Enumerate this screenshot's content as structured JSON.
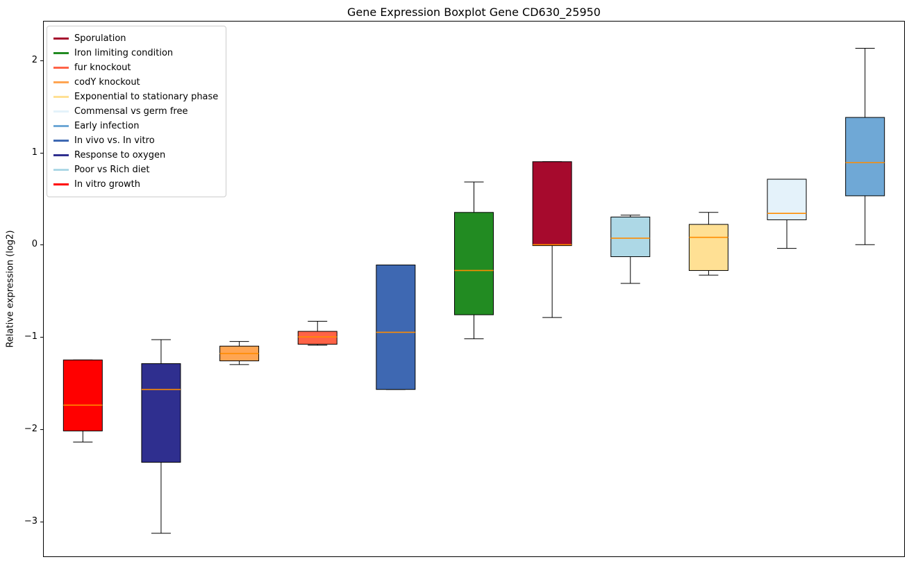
{
  "chart_data": {
    "type": "boxplot",
    "title": "Gene Expression Boxplot Gene CD630_25950",
    "xlabel": "",
    "ylabel": "Relative expression (log2)",
    "ylim": [
      -3.38,
      2.42
    ],
    "grid": false,
    "legend_position": "upper-left",
    "median_color": "#FF8C00",
    "whisker_color": "#000000",
    "box_edge_color": "#000000",
    "yticks": [
      {
        "value": 2,
        "label": "2"
      },
      {
        "value": 1,
        "label": "1"
      },
      {
        "value": 0,
        "label": "0"
      },
      {
        "value": -1,
        "label": "−1"
      },
      {
        "value": -2,
        "label": "−2"
      },
      {
        "value": -3,
        "label": "−3"
      }
    ],
    "legend": [
      {
        "label": "Sporulation",
        "color": "#A60A2D"
      },
      {
        "label": "Iron limiting condition",
        "color": "#228B22"
      },
      {
        "label": "fur knockout",
        "color": "#FF6347"
      },
      {
        "label": "codY knockout",
        "color": "#FFA552"
      },
      {
        "label": "Exponential to stationary phase",
        "color": "#FFE094"
      },
      {
        "label": "Commensal vs germ free",
        "color": "#E4F2FA"
      },
      {
        "label": "Early infection",
        "color": "#6FA8D6"
      },
      {
        "label": "In vivo vs. In vitro",
        "color": "#3E68B2"
      },
      {
        "label": "Response to oxygen",
        "color": "#2F2F8F"
      },
      {
        "label": "Poor vs Rich diet",
        "color": "#ADD8E6"
      },
      {
        "label": "In vitro growth",
        "color": "#FF0000"
      }
    ],
    "boxes": [
      {
        "label": "In vitro growth",
        "color": "#FF0000",
        "whisker_low": -2.14,
        "q1": -2.02,
        "median": -1.74,
        "q3": -1.25,
        "whisker_high": -1.25
      },
      {
        "label": "Response to oxygen",
        "color": "#2F2F8F",
        "whisker_low": -3.13,
        "q1": -2.36,
        "median": -1.57,
        "q3": -1.29,
        "whisker_high": -1.03
      },
      {
        "label": "codY knockout",
        "color": "#FFA552",
        "whisker_low": -1.3,
        "q1": -1.26,
        "median": -1.18,
        "q3": -1.1,
        "whisker_high": -1.05
      },
      {
        "label": "fur knockout",
        "color": "#FF6347",
        "whisker_low": -1.09,
        "q1": -1.08,
        "median": -1.0,
        "q3": -0.94,
        "whisker_high": -0.83
      },
      {
        "label": "In vivo vs. In vitro",
        "color": "#3E68B2",
        "whisker_low": -1.57,
        "q1": -1.57,
        "median": -0.95,
        "q3": -0.22,
        "whisker_high": -0.22
      },
      {
        "label": "Iron limiting condition",
        "color": "#228B22",
        "whisker_low": -1.02,
        "q1": -0.76,
        "median": -0.28,
        "q3": 0.35,
        "whisker_high": 0.68
      },
      {
        "label": "Sporulation",
        "color": "#A60A2D",
        "whisker_low": -0.79,
        "q1": -0.01,
        "median": 0.0,
        "q3": 0.9,
        "whisker_high": 0.9
      },
      {
        "label": "Poor vs Rich diet",
        "color": "#ADD8E6",
        "whisker_low": -0.42,
        "q1": -0.13,
        "median": 0.07,
        "q3": 0.3,
        "whisker_high": 0.32
      },
      {
        "label": "Exponential to stationary phase",
        "color": "#FFE094",
        "whisker_low": -0.33,
        "q1": -0.28,
        "median": 0.08,
        "q3": 0.22,
        "whisker_high": 0.35
      },
      {
        "label": "Commensal vs germ free",
        "color": "#E4F2FA",
        "whisker_low": -0.04,
        "q1": 0.27,
        "median": 0.34,
        "q3": 0.71,
        "whisker_high": 0.71
      },
      {
        "label": "Early infection",
        "color": "#6FA8D6",
        "whisker_low": 0.0,
        "q1": 0.53,
        "median": 0.89,
        "q3": 1.38,
        "whisker_high": 2.13
      }
    ]
  }
}
